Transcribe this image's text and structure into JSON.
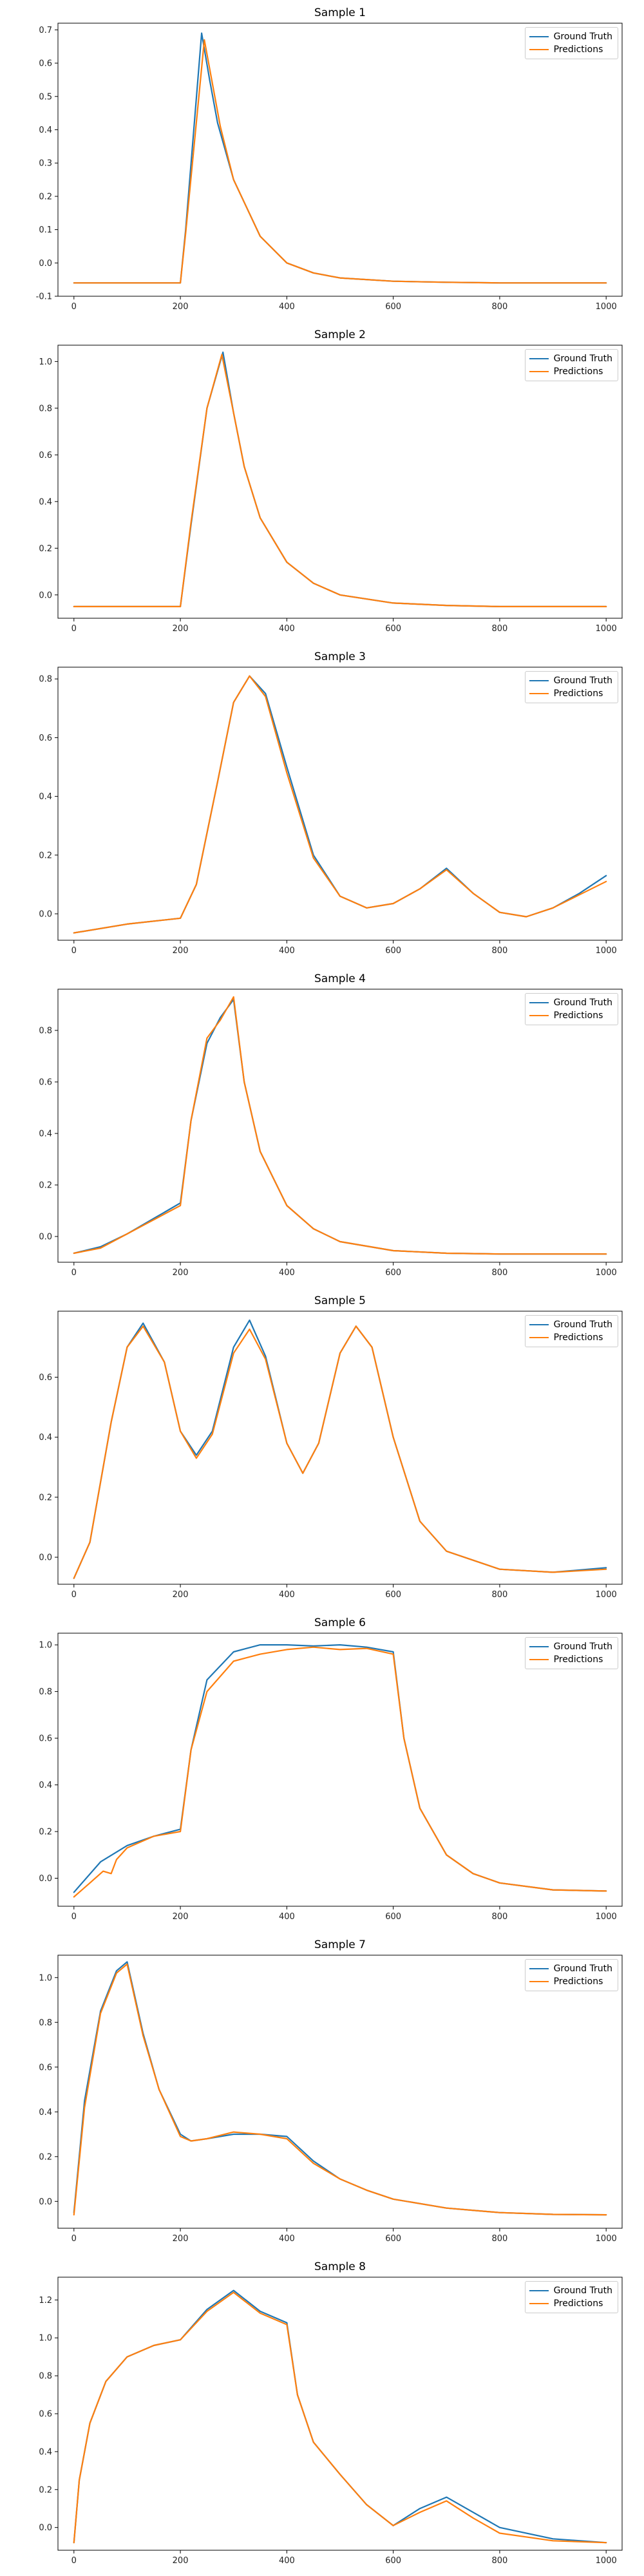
{
  "legend": {
    "truth": "Ground Truth",
    "pred": "Predictions"
  },
  "colors": {
    "truth": "#1f77b4",
    "pred": "#ff7f0e"
  },
  "chart_data": [
    {
      "type": "line",
      "title": "Sample 1",
      "xlim": [
        -30,
        1030
      ],
      "ylim": [
        -0.1,
        0.72
      ],
      "xticks": [
        0,
        200,
        400,
        600,
        800,
        1000
      ],
      "yticks": [
        -0.1,
        0.0,
        0.1,
        0.2,
        0.3,
        0.4,
        0.5,
        0.6,
        0.7
      ],
      "legend_position": "top-right",
      "series": [
        {
          "name": "Ground Truth",
          "x": [
            0,
            100,
            200,
            210,
            240,
            255,
            270,
            300,
            350,
            400,
            450,
            500,
            600,
            700,
            800,
            1000
          ],
          "y": [
            -0.06,
            -0.06,
            -0.06,
            0.1,
            0.69,
            0.55,
            0.42,
            0.25,
            0.08,
            0.0,
            -0.03,
            -0.045,
            -0.055,
            -0.058,
            -0.06,
            -0.06
          ]
        },
        {
          "name": "Predictions",
          "x": [
            0,
            100,
            200,
            210,
            245,
            260,
            275,
            300,
            350,
            400,
            450,
            500,
            600,
            700,
            800,
            1000
          ],
          "y": [
            -0.06,
            -0.06,
            -0.06,
            0.09,
            0.67,
            0.54,
            0.41,
            0.25,
            0.08,
            0.0,
            -0.03,
            -0.045,
            -0.055,
            -0.058,
            -0.06,
            -0.06
          ]
        }
      ]
    },
    {
      "type": "line",
      "title": "Sample 2",
      "xlim": [
        -30,
        1030
      ],
      "ylim": [
        -0.1,
        1.07
      ],
      "xticks": [
        0,
        200,
        400,
        600,
        800,
        1000
      ],
      "yticks": [
        0.0,
        0.2,
        0.4,
        0.6,
        0.8,
        1.0
      ],
      "legend_position": "top-right",
      "series": [
        {
          "name": "Ground Truth",
          "x": [
            0,
            100,
            200,
            220,
            250,
            280,
            300,
            320,
            350,
            400,
            450,
            500,
            600,
            700,
            800,
            1000
          ],
          "y": [
            -0.05,
            -0.05,
            -0.05,
            0.3,
            0.8,
            1.04,
            0.78,
            0.55,
            0.33,
            0.14,
            0.05,
            0.0,
            -0.035,
            -0.045,
            -0.05,
            -0.05
          ]
        },
        {
          "name": "Predictions",
          "x": [
            0,
            100,
            200,
            220,
            250,
            278,
            300,
            320,
            350,
            400,
            450,
            500,
            600,
            700,
            800,
            1000
          ],
          "y": [
            -0.05,
            -0.05,
            -0.05,
            0.31,
            0.8,
            1.03,
            0.78,
            0.55,
            0.33,
            0.14,
            0.05,
            0.0,
            -0.035,
            -0.045,
            -0.05,
            -0.05
          ]
        }
      ]
    },
    {
      "type": "line",
      "title": "Sample 3",
      "xlim": [
        -30,
        1030
      ],
      "ylim": [
        -0.09,
        0.84
      ],
      "xticks": [
        0,
        200,
        400,
        600,
        800,
        1000
      ],
      "yticks": [
        0.0,
        0.2,
        0.4,
        0.6,
        0.8
      ],
      "legend_position": "top-right",
      "series": [
        {
          "name": "Ground Truth",
          "x": [
            0,
            100,
            200,
            230,
            270,
            300,
            330,
            360,
            400,
            450,
            500,
            550,
            600,
            650,
            700,
            750,
            800,
            850,
            900,
            950,
            1000
          ],
          "y": [
            -0.065,
            -0.035,
            -0.015,
            0.1,
            0.45,
            0.72,
            0.81,
            0.75,
            0.5,
            0.2,
            0.06,
            0.02,
            0.035,
            0.085,
            0.155,
            0.07,
            0.005,
            -0.01,
            0.02,
            0.07,
            0.13
          ]
        },
        {
          "name": "Predictions",
          "x": [
            0,
            100,
            200,
            230,
            270,
            300,
            330,
            360,
            400,
            450,
            500,
            550,
            600,
            650,
            700,
            750,
            800,
            850,
            900,
            950,
            1000
          ],
          "y": [
            -0.065,
            -0.035,
            -0.015,
            0.1,
            0.45,
            0.72,
            0.81,
            0.74,
            0.48,
            0.19,
            0.06,
            0.02,
            0.035,
            0.085,
            0.15,
            0.07,
            0.005,
            -0.01,
            0.02,
            0.065,
            0.11
          ]
        }
      ]
    },
    {
      "type": "line",
      "title": "Sample 4",
      "xlim": [
        -30,
        1030
      ],
      "ylim": [
        -0.1,
        0.96
      ],
      "xticks": [
        0,
        200,
        400,
        600,
        800,
        1000
      ],
      "yticks": [
        0.0,
        0.2,
        0.4,
        0.6,
        0.8
      ],
      "legend_position": "top-right",
      "series": [
        {
          "name": "Ground Truth",
          "x": [
            0,
            50,
            100,
            150,
            200,
            220,
            250,
            275,
            300,
            320,
            350,
            400,
            450,
            500,
            600,
            700,
            800,
            1000
          ],
          "y": [
            -0.065,
            -0.04,
            0.01,
            0.07,
            0.13,
            0.45,
            0.75,
            0.85,
            0.92,
            0.6,
            0.33,
            0.12,
            0.03,
            -0.02,
            -0.055,
            -0.065,
            -0.068,
            -0.068
          ]
        },
        {
          "name": "Predictions",
          "x": [
            0,
            50,
            100,
            150,
            200,
            220,
            250,
            275,
            300,
            320,
            350,
            400,
            450,
            500,
            600,
            700,
            800,
            1000
          ],
          "y": [
            -0.065,
            -0.045,
            0.01,
            0.065,
            0.12,
            0.45,
            0.77,
            0.84,
            0.93,
            0.6,
            0.33,
            0.12,
            0.03,
            -0.02,
            -0.055,
            -0.065,
            -0.068,
            -0.068
          ]
        }
      ]
    },
    {
      "type": "line",
      "title": "Sample 5",
      "xlim": [
        -30,
        1030
      ],
      "ylim": [
        -0.09,
        0.82
      ],
      "xticks": [
        0,
        200,
        400,
        600,
        800,
        1000
      ],
      "yticks": [
        0.0,
        0.2,
        0.4,
        0.6
      ],
      "legend_position": "top-right",
      "series": [
        {
          "name": "Ground Truth",
          "x": [
            0,
            30,
            70,
            100,
            130,
            170,
            200,
            230,
            260,
            300,
            330,
            360,
            400,
            430,
            460,
            500,
            530,
            560,
            600,
            650,
            700,
            800,
            900,
            1000
          ],
          "y": [
            -0.07,
            0.05,
            0.45,
            0.7,
            0.78,
            0.65,
            0.42,
            0.34,
            0.42,
            0.7,
            0.79,
            0.67,
            0.38,
            0.28,
            0.38,
            0.68,
            0.77,
            0.7,
            0.4,
            0.12,
            0.02,
            -0.04,
            -0.05,
            -0.035
          ]
        },
        {
          "name": "Predictions",
          "x": [
            0,
            30,
            70,
            100,
            130,
            170,
            200,
            230,
            260,
            300,
            330,
            360,
            400,
            430,
            460,
            500,
            530,
            560,
            600,
            650,
            700,
            800,
            900,
            1000
          ],
          "y": [
            -0.07,
            0.05,
            0.45,
            0.7,
            0.77,
            0.65,
            0.42,
            0.33,
            0.41,
            0.68,
            0.76,
            0.66,
            0.38,
            0.28,
            0.38,
            0.68,
            0.77,
            0.7,
            0.4,
            0.12,
            0.02,
            -0.04,
            -0.05,
            -0.04
          ]
        }
      ]
    },
    {
      "type": "line",
      "title": "Sample 6",
      "xlim": [
        -30,
        1030
      ],
      "ylim": [
        -0.12,
        1.05
      ],
      "xticks": [
        0,
        200,
        400,
        600,
        800,
        1000
      ],
      "yticks": [
        0.0,
        0.2,
        0.4,
        0.6,
        0.8,
        1.0
      ],
      "legend_position": "top-right",
      "series": [
        {
          "name": "Ground Truth",
          "x": [
            0,
            50,
            100,
            150,
            200,
            220,
            250,
            300,
            350,
            400,
            450,
            500,
            550,
            600,
            620,
            650,
            700,
            750,
            800,
            900,
            1000
          ],
          "y": [
            -0.06,
            0.07,
            0.14,
            0.18,
            0.21,
            0.55,
            0.85,
            0.97,
            1.0,
            1.0,
            0.995,
            1.0,
            0.99,
            0.97,
            0.6,
            0.3,
            0.1,
            0.02,
            -0.02,
            -0.05,
            -0.055
          ]
        },
        {
          "name": "Predictions",
          "x": [
            0,
            30,
            55,
            70,
            80,
            100,
            150,
            200,
            220,
            250,
            300,
            350,
            400,
            450,
            500,
            550,
            600,
            620,
            650,
            700,
            750,
            800,
            900,
            1000
          ],
          "y": [
            -0.08,
            -0.02,
            0.03,
            0.02,
            0.08,
            0.13,
            0.18,
            0.2,
            0.55,
            0.8,
            0.93,
            0.96,
            0.98,
            0.99,
            0.98,
            0.985,
            0.96,
            0.6,
            0.3,
            0.1,
            0.02,
            -0.02,
            -0.05,
            -0.055
          ]
        }
      ]
    },
    {
      "type": "line",
      "title": "Sample 7",
      "xlim": [
        -30,
        1030
      ],
      "ylim": [
        -0.12,
        1.1
      ],
      "xticks": [
        0,
        200,
        400,
        600,
        800,
        1000
      ],
      "yticks": [
        0.0,
        0.2,
        0.4,
        0.6,
        0.8,
        1.0
      ],
      "legend_position": "top-right",
      "series": [
        {
          "name": "Ground Truth",
          "x": [
            0,
            20,
            50,
            80,
            100,
            130,
            160,
            200,
            220,
            250,
            300,
            350,
            400,
            450,
            500,
            550,
            600,
            700,
            800,
            900,
            1000
          ],
          "y": [
            -0.05,
            0.45,
            0.85,
            1.03,
            1.07,
            0.75,
            0.5,
            0.3,
            0.27,
            0.28,
            0.3,
            0.3,
            0.29,
            0.18,
            0.1,
            0.05,
            0.01,
            -0.03,
            -0.05,
            -0.058,
            -0.06
          ]
        },
        {
          "name": "Predictions",
          "x": [
            0,
            20,
            50,
            80,
            100,
            130,
            160,
            200,
            220,
            250,
            300,
            350,
            400,
            450,
            500,
            550,
            600,
            700,
            800,
            900,
            1000
          ],
          "y": [
            -0.06,
            0.42,
            0.84,
            1.02,
            1.06,
            0.74,
            0.5,
            0.29,
            0.27,
            0.28,
            0.31,
            0.3,
            0.28,
            0.17,
            0.1,
            0.05,
            0.01,
            -0.03,
            -0.05,
            -0.058,
            -0.06
          ]
        }
      ]
    },
    {
      "type": "line",
      "title": "Sample 8",
      "xlim": [
        -30,
        1030
      ],
      "ylim": [
        -0.12,
        1.32
      ],
      "xticks": [
        0,
        200,
        400,
        600,
        800,
        1000
      ],
      "yticks": [
        0.0,
        0.2,
        0.4,
        0.6,
        0.8,
        1.0,
        1.2
      ],
      "legend_position": "top-right",
      "series": [
        {
          "name": "Ground Truth",
          "x": [
            0,
            10,
            30,
            60,
            100,
            150,
            200,
            250,
            300,
            350,
            400,
            420,
            450,
            500,
            550,
            600,
            650,
            700,
            750,
            800,
            900,
            1000
          ],
          "y": [
            -0.08,
            0.25,
            0.55,
            0.77,
            0.9,
            0.96,
            0.99,
            1.15,
            1.25,
            1.14,
            1.08,
            0.7,
            0.45,
            0.28,
            0.12,
            0.01,
            0.1,
            0.16,
            0.08,
            0.0,
            -0.06,
            -0.08
          ]
        },
        {
          "name": "Predictions",
          "x": [
            0,
            10,
            30,
            60,
            100,
            150,
            200,
            250,
            300,
            350,
            400,
            420,
            450,
            500,
            550,
            600,
            650,
            700,
            750,
            800,
            900,
            1000
          ],
          "y": [
            -0.08,
            0.25,
            0.55,
            0.77,
            0.9,
            0.96,
            0.99,
            1.14,
            1.24,
            1.13,
            1.07,
            0.7,
            0.45,
            0.28,
            0.12,
            0.01,
            0.08,
            0.14,
            0.05,
            -0.03,
            -0.07,
            -0.08
          ]
        }
      ]
    }
  ]
}
